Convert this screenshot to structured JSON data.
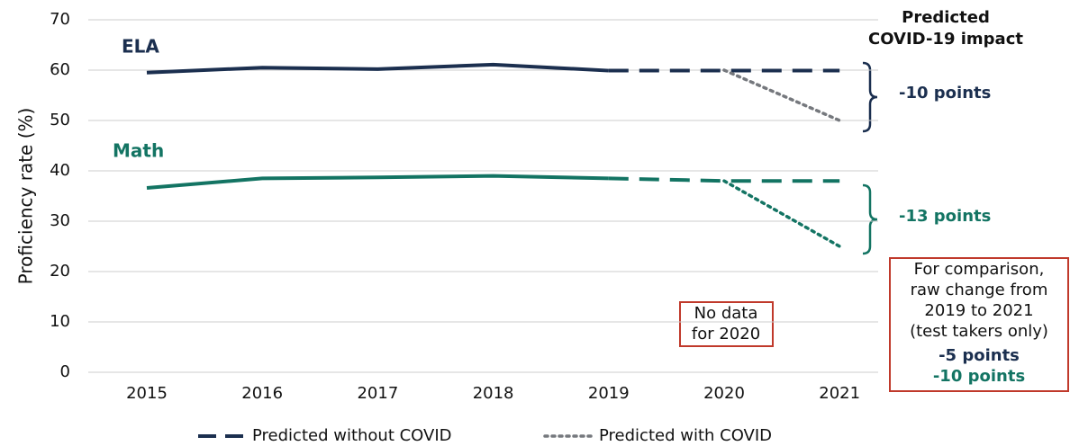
{
  "chart_data": {
    "type": "line",
    "y_label": "Proficiency rate (%)",
    "categories": [
      "2015",
      "2016",
      "2017",
      "2018",
      "2019",
      "2020",
      "2021"
    ],
    "ylim": [
      0,
      70
    ],
    "yticks": [
      0,
      10,
      20,
      30,
      40,
      50,
      60,
      70
    ],
    "grid": true,
    "series": [
      {
        "name": "ELA",
        "color": "#1b2f4f",
        "style": "solid",
        "values": [
          59.5,
          60.5,
          60.2,
          61.1,
          59.9,
          null,
          null
        ]
      },
      {
        "color": "#1b2f4f",
        "style": "dashed",
        "values": [
          null,
          null,
          null,
          null,
          59.9,
          59.9,
          59.9
        ]
      },
      {
        "color": "#75787d",
        "style": "dotted",
        "values": [
          null,
          null,
          null,
          null,
          null,
          60,
          50
        ]
      },
      {
        "name": "Math",
        "color": "#137463",
        "style": "solid",
        "values": [
          36.6,
          38.5,
          38.7,
          39.0,
          38.5,
          null,
          null
        ]
      },
      {
        "color": "#137463",
        "style": "dashed",
        "values": [
          null,
          null,
          null,
          null,
          38.5,
          38,
          38
        ]
      },
      {
        "color": "#137463",
        "style": "dotted",
        "values": [
          null,
          null,
          null,
          null,
          null,
          38,
          25
        ]
      }
    ],
    "legend": [
      {
        "label": "Predicted without COVID",
        "style": "dashed",
        "color": "#1b2f4f"
      },
      {
        "label": "Predicted with COVID",
        "style": "dotted",
        "color": "#75787d"
      }
    ],
    "impact_title": [
      "Predicted",
      "COVID-19 impact"
    ],
    "ela_impact": "-10 points",
    "math_impact": "-13 points",
    "no_data_note": [
      "No data",
      "for 2020"
    ],
    "comparison_note": [
      "For comparison,",
      "raw change from",
      "2019 to 2021",
      "(test takers only)"
    ],
    "ela_raw_change": "-5 points",
    "math_raw_change": "-10 points"
  }
}
